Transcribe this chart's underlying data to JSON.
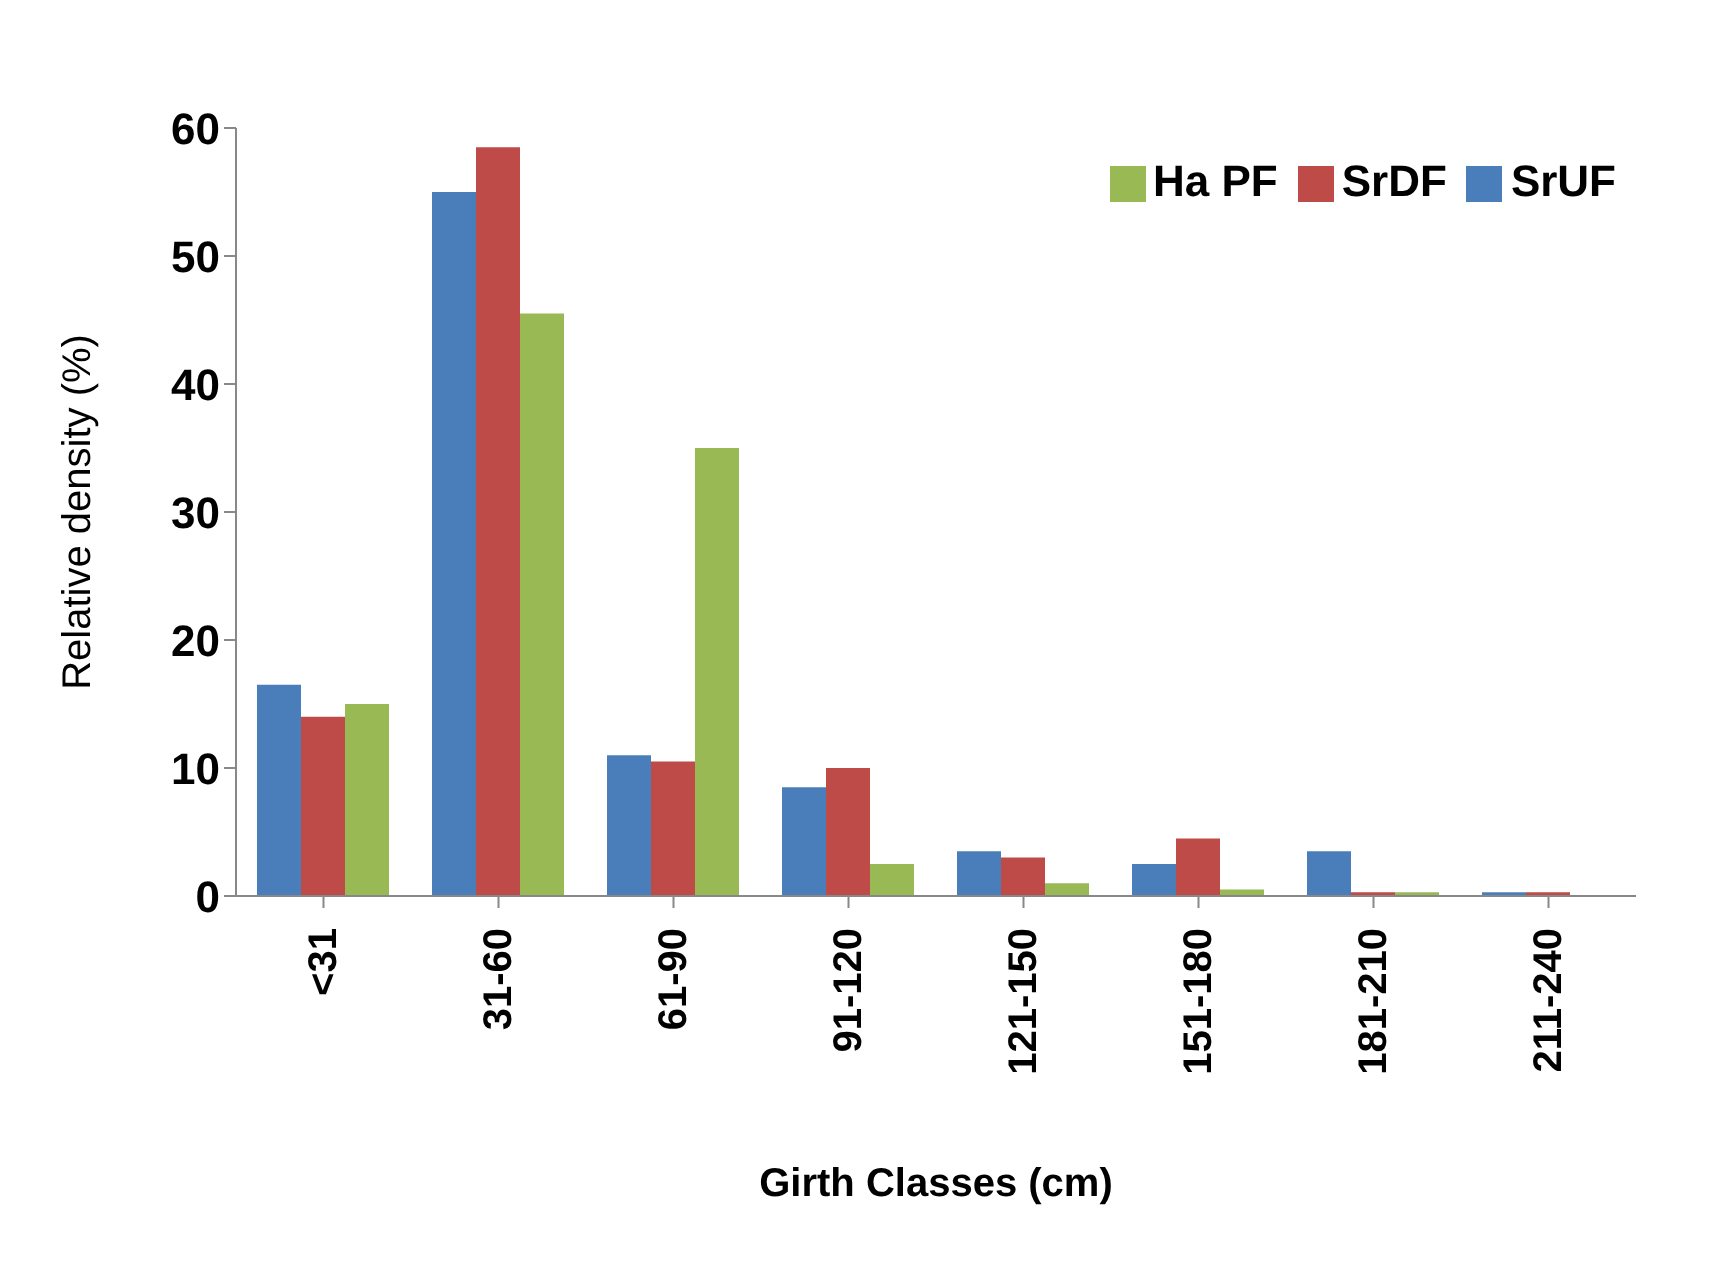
{
  "chart_data": {
    "type": "bar",
    "xlabel": "Girth Classes (cm)",
    "ylabel": "Relative density (%)",
    "categories": [
      "<31",
      "31-60",
      "61-90",
      "91-120",
      "121-150",
      "151-180",
      "181-210",
      "211-240"
    ],
    "series": [
      {
        "name": "SrUF",
        "color": "#4a7ebb",
        "values": [
          16.5,
          55,
          11,
          8.5,
          3.5,
          2.5,
          3.5,
          0.3
        ]
      },
      {
        "name": "SrDF",
        "color": "#be4b48",
        "values": [
          14,
          58.5,
          10.5,
          10,
          3,
          4.5,
          0.3,
          0.3
        ]
      },
      {
        "name": "Ha PF",
        "color": "#98b954",
        "values": [
          15,
          45.5,
          35,
          2.5,
          1,
          0.5,
          0.3,
          0
        ]
      }
    ],
    "ylim": [
      0,
      60
    ],
    "yticks": [
      0,
      10,
      20,
      30,
      40,
      50,
      60
    ],
    "grid": false,
    "legend": "top right"
  }
}
